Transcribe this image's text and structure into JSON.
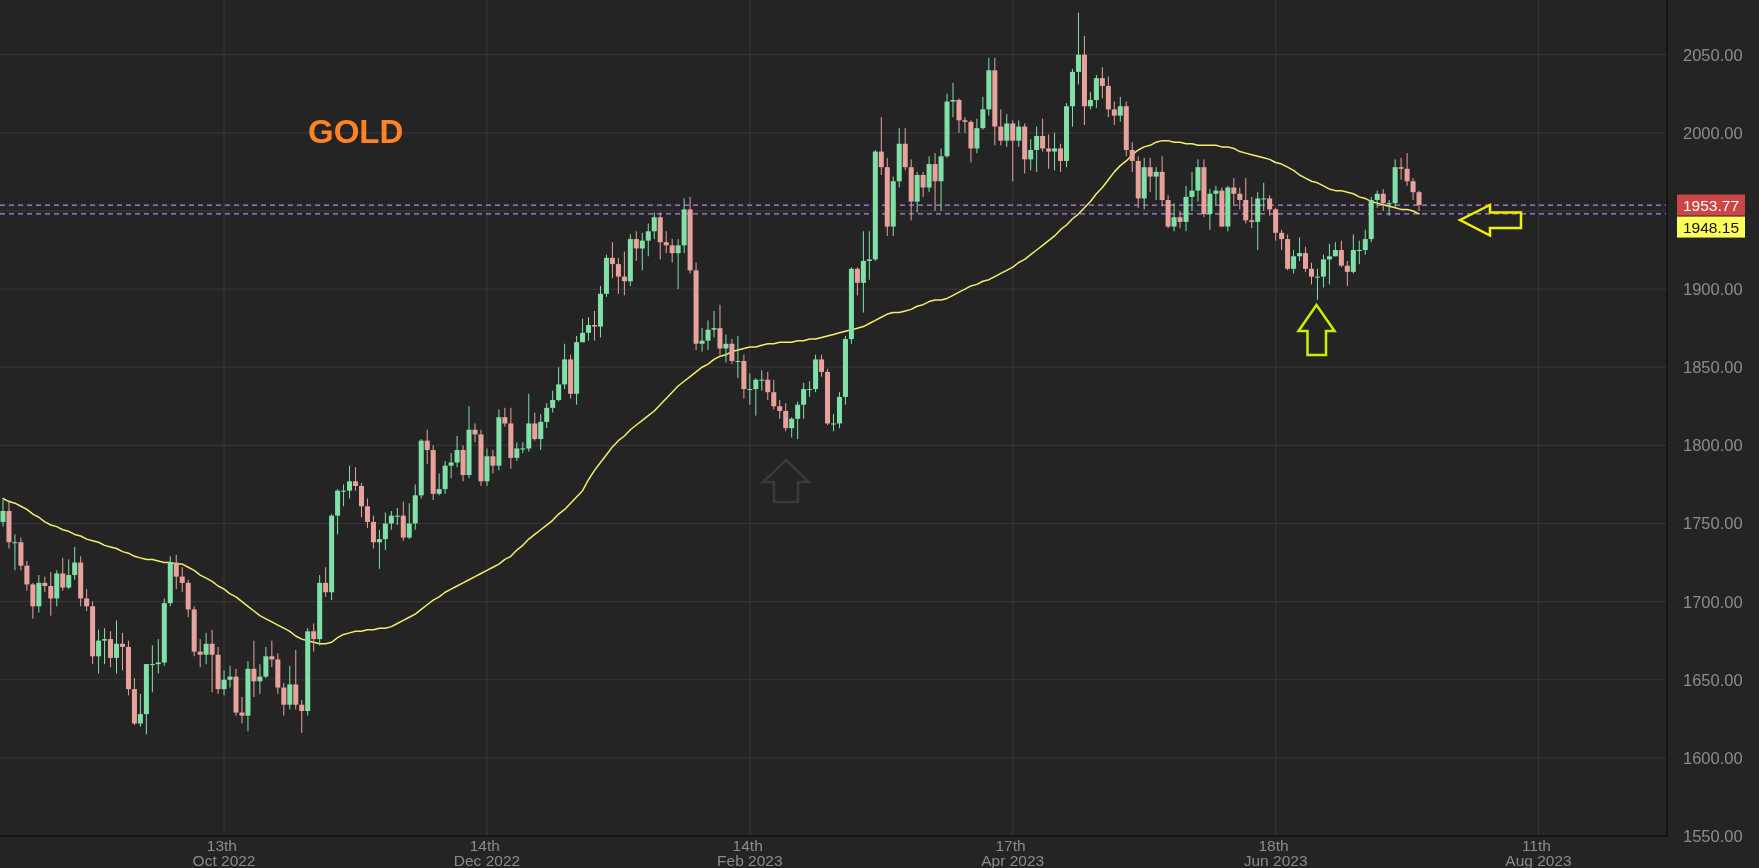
{
  "chart_data": {
    "type": "candlestick",
    "title": "GOLD",
    "categories": [
      null,
      null,
      null,
      null,
      null,
      null,
      null,
      null,
      null,
      null,
      null,
      null,
      null,
      null,
      null,
      null,
      null,
      null,
      null,
      null,
      null,
      null,
      null,
      null,
      null,
      null,
      null,
      null,
      null,
      null,
      null,
      null,
      null,
      null,
      null,
      null,
      null,
      "13th Oct 2022",
      null,
      null,
      null,
      null,
      null,
      null,
      null,
      null,
      null,
      null,
      null,
      null,
      null,
      null,
      null,
      null,
      null,
      null,
      null,
      null,
      null,
      null,
      null,
      null,
      null,
      null,
      null,
      null,
      null,
      null,
      null,
      null,
      null,
      null,
      null,
      null,
      null,
      null,
      null,
      null,
      null,
      null,
      null,
      "14th Dec 2022",
      null,
      null,
      null,
      null,
      null,
      null,
      null,
      null,
      null,
      null,
      null,
      null,
      null,
      null,
      null,
      null,
      null,
      null,
      null,
      null,
      null,
      null,
      null,
      null,
      null,
      null,
      null,
      null,
      null,
      null,
      null,
      null,
      null,
      null,
      null,
      null,
      null,
      null,
      null,
      null,
      null,
      null,
      null,
      "14th Feb 2023",
      null,
      null,
      null,
      null,
      null,
      null,
      null,
      null,
      null,
      null,
      null,
      null,
      null,
      null,
      null,
      null,
      null,
      null,
      null,
      null,
      null,
      null,
      null,
      null,
      null,
      null,
      null,
      null,
      null,
      null,
      null,
      null,
      null,
      null,
      null,
      null,
      null,
      null,
      null,
      null,
      null,
      null,
      null,
      "17th Apr 2023",
      null,
      null,
      null,
      null,
      null,
      null,
      null,
      null,
      null,
      null,
      null,
      null,
      null,
      null,
      null,
      null,
      null,
      null,
      null,
      null,
      null,
      null,
      null,
      null,
      null,
      null,
      null,
      null,
      null,
      null,
      null,
      null,
      null,
      null,
      null,
      null,
      null,
      null,
      null,
      null,
      null,
      null,
      null,
      "18th Jun 2023",
      null,
      null,
      null,
      null,
      null,
      null,
      null,
      null,
      null,
      null,
      null,
      null,
      null,
      null,
      null,
      null,
      null,
      null,
      null,
      null,
      null,
      null,
      null,
      null,
      null,
      null,
      null,
      null,
      null,
      null,
      null,
      null,
      null,
      null,
      null,
      null,
      null,
      null,
      null,
      null,
      null,
      null,
      null,
      "11th Aug 2023",
      null,
      null,
      null,
      null,
      null,
      null,
      null,
      null,
      null,
      null,
      null,
      null,
      null,
      null,
      null,
      null,
      null,
      null,
      null,
      null,
      null
    ],
    "ohlc": [
      [
        1751,
        1765,
        1748,
        1758
      ],
      [
        1758,
        1765,
        1734,
        1738
      ],
      [
        1738,
        1743,
        1720,
        1738
      ],
      [
        1738,
        1741,
        1720,
        1723
      ],
      [
        1723,
        1726,
        1707,
        1711
      ],
      [
        1711,
        1712,
        1689,
        1697
      ],
      [
        1697,
        1717,
        1693,
        1712
      ],
      [
        1712,
        1716,
        1706,
        1710
      ],
      [
        1710,
        1719,
        1691,
        1702
      ],
      [
        1702,
        1720,
        1697,
        1718
      ],
      [
        1718,
        1728,
        1707,
        1709
      ],
      [
        1709,
        1727,
        1708,
        1717
      ],
      [
        1717,
        1735,
        1714,
        1725
      ],
      [
        1725,
        1729,
        1697,
        1702
      ],
      [
        1702,
        1708,
        1694,
        1697
      ],
      [
        1697,
        1700,
        1660,
        1665
      ],
      [
        1665,
        1682,
        1654,
        1675
      ],
      [
        1675,
        1683,
        1660,
        1676
      ],
      [
        1676,
        1681,
        1658,
        1664
      ],
      [
        1664,
        1688,
        1654,
        1673
      ],
      [
        1673,
        1680,
        1656,
        1671
      ],
      [
        1671,
        1675,
        1640,
        1644
      ],
      [
        1644,
        1651,
        1621,
        1622
      ],
      [
        1622,
        1641,
        1620,
        1628
      ],
      [
        1628,
        1660,
        1615,
        1660
      ],
      [
        1660,
        1672,
        1642,
        1660
      ],
      [
        1660,
        1676,
        1654,
        1661
      ],
      [
        1661,
        1702,
        1659,
        1699
      ],
      [
        1699,
        1729,
        1697,
        1725
      ],
      [
        1725,
        1730,
        1708,
        1716
      ],
      [
        1716,
        1722,
        1706,
        1712
      ],
      [
        1712,
        1714,
        1690,
        1695
      ],
      [
        1695,
        1697,
        1665,
        1668
      ],
      [
        1668,
        1676,
        1658,
        1666
      ],
      [
        1666,
        1680,
        1660,
        1673
      ],
      [
        1673,
        1682,
        1642,
        1666
      ],
      [
        1666,
        1671,
        1641,
        1644
      ],
      [
        1644,
        1656,
        1640,
        1650
      ],
      [
        1650,
        1659,
        1645,
        1652
      ],
      [
        1652,
        1657,
        1627,
        1629
      ],
      [
        1629,
        1639,
        1622,
        1627
      ],
      [
        1627,
        1662,
        1617,
        1657
      ],
      [
        1657,
        1675,
        1639,
        1649
      ],
      [
        1649,
        1660,
        1641,
        1652
      ],
      [
        1652,
        1671,
        1651,
        1665
      ],
      [
        1665,
        1675,
        1658,
        1663
      ],
      [
        1663,
        1667,
        1641,
        1645
      ],
      [
        1645,
        1648,
        1627,
        1634
      ],
      [
        1634,
        1659,
        1631,
        1647
      ],
      [
        1647,
        1669,
        1631,
        1634
      ],
      [
        1634,
        1637,
        1616,
        1630
      ],
      [
        1630,
        1683,
        1627,
        1681
      ],
      [
        1681,
        1686,
        1668,
        1676
      ],
      [
        1676,
        1717,
        1672,
        1712
      ],
      [
        1712,
        1722,
        1703,
        1706
      ],
      [
        1706,
        1756,
        1701,
        1755
      ],
      [
        1755,
        1772,
        1743,
        1771
      ],
      [
        1771,
        1775,
        1761,
        1771
      ],
      [
        1771,
        1787,
        1766,
        1777
      ],
      [
        1777,
        1786,
        1771,
        1774
      ],
      [
        1774,
        1776,
        1754,
        1761
      ],
      [
        1761,
        1766,
        1747,
        1751
      ],
      [
        1751,
        1755,
        1734,
        1738
      ],
      [
        1738,
        1746,
        1721,
        1740
      ],
      [
        1740,
        1757,
        1733,
        1750
      ],
      [
        1750,
        1758,
        1746,
        1755
      ],
      [
        1755,
        1760,
        1749,
        1755
      ],
      [
        1755,
        1764,
        1739,
        1741
      ],
      [
        1741,
        1763,
        1740,
        1750
      ],
      [
        1750,
        1775,
        1746,
        1768
      ],
      [
        1768,
        1804,
        1766,
        1803
      ],
      [
        1803,
        1810,
        1788,
        1797
      ],
      [
        1797,
        1800,
        1765,
        1769
      ],
      [
        1769,
        1782,
        1768,
        1772
      ],
      [
        1772,
        1790,
        1769,
        1787
      ],
      [
        1787,
        1795,
        1779,
        1789
      ],
      [
        1789,
        1806,
        1786,
        1797
      ],
      [
        1797,
        1800,
        1777,
        1781
      ],
      [
        1781,
        1825,
        1779,
        1810
      ],
      [
        1810,
        1814,
        1802,
        1807
      ],
      [
        1807,
        1810,
        1774,
        1777
      ],
      [
        1777,
        1798,
        1774,
        1793
      ],
      [
        1793,
        1797,
        1782,
        1787
      ],
      [
        1787,
        1823,
        1784,
        1818
      ],
      [
        1818,
        1824,
        1812,
        1814
      ],
      [
        1814,
        1824,
        1785,
        1792
      ],
      [
        1792,
        1802,
        1790,
        1798
      ],
      [
        1798,
        1802,
        1795,
        1798
      ],
      [
        1798,
        1833,
        1796,
        1814
      ],
      [
        1814,
        1821,
        1803,
        1804
      ],
      [
        1804,
        1820,
        1797,
        1815
      ],
      [
        1815,
        1827,
        1811,
        1824
      ],
      [
        1824,
        1835,
        1821,
        1829
      ],
      [
        1829,
        1850,
        1828,
        1839
      ],
      [
        1839,
        1865,
        1836,
        1855
      ],
      [
        1855,
        1858,
        1830,
        1833
      ],
      [
        1833,
        1870,
        1826,
        1866
      ],
      [
        1866,
        1881,
        1866,
        1872
      ],
      [
        1872,
        1882,
        1867,
        1877
      ],
      [
        1877,
        1886,
        1867,
        1876
      ],
      [
        1876,
        1902,
        1869,
        1897
      ],
      [
        1897,
        1922,
        1895,
        1920
      ],
      [
        1920,
        1930,
        1907,
        1916
      ],
      [
        1916,
        1920,
        1897,
        1908
      ],
      [
        1908,
        1924,
        1896,
        1905
      ],
      [
        1905,
        1935,
        1902,
        1932
      ],
      [
        1932,
        1937,
        1918,
        1926
      ],
      [
        1926,
        1936,
        1912,
        1931
      ],
      [
        1931,
        1942,
        1921,
        1937
      ],
      [
        1937,
        1949,
        1932,
        1946
      ],
      [
        1946,
        1949,
        1919,
        1930
      ],
      [
        1930,
        1937,
        1923,
        1928
      ],
      [
        1928,
        1932,
        1917,
        1923
      ],
      [
        1923,
        1932,
        1900,
        1928
      ],
      [
        1928,
        1958,
        1923,
        1951
      ],
      [
        1951,
        1959,
        1910,
        1912
      ],
      [
        1912,
        1917,
        1861,
        1865
      ],
      [
        1865,
        1875,
        1860,
        1867
      ],
      [
        1867,
        1880,
        1861,
        1874
      ],
      [
        1874,
        1886,
        1869,
        1875
      ],
      [
        1875,
        1890,
        1858,
        1862
      ],
      [
        1862,
        1871,
        1853,
        1865
      ],
      [
        1865,
        1868,
        1852,
        1854
      ],
      [
        1854,
        1870,
        1843,
        1854
      ],
      [
        1854,
        1858,
        1830,
        1836
      ],
      [
        1836,
        1846,
        1826,
        1836
      ],
      [
        1836,
        1843,
        1819,
        1842
      ],
      [
        1842,
        1848,
        1835,
        1842
      ],
      [
        1842,
        1847,
        1829,
        1834
      ],
      [
        1834,
        1842,
        1823,
        1825
      ],
      [
        1825,
        1829,
        1817,
        1822
      ],
      [
        1822,
        1827,
        1809,
        1811
      ],
      [
        1811,
        1818,
        1805,
        1817
      ],
      [
        1817,
        1828,
        1804,
        1826
      ],
      [
        1826,
        1840,
        1817,
        1836
      ],
      [
        1836,
        1841,
        1831,
        1836
      ],
      [
        1836,
        1858,
        1834,
        1855
      ],
      [
        1855,
        1858,
        1844,
        1847
      ],
      [
        1847,
        1849,
        1813,
        1814
      ],
      [
        1814,
        1820,
        1809,
        1814
      ],
      [
        1814,
        1834,
        1811,
        1831
      ],
      [
        1831,
        1870,
        1826,
        1868
      ],
      [
        1868,
        1914,
        1865,
        1913
      ],
      [
        1913,
        1914,
        1896,
        1904
      ],
      [
        1904,
        1937,
        1885,
        1918
      ],
      [
        1918,
        1937,
        1906,
        1919
      ],
      [
        1919,
        1989,
        1918,
        1988
      ],
      [
        1988,
        2010,
        1973,
        1978
      ],
      [
        1978,
        1984,
        1934,
        1940
      ],
      [
        1940,
        1972,
        1934,
        1969
      ],
      [
        1969,
        2003,
        1965,
        1993
      ],
      [
        1993,
        2003,
        1976,
        1978
      ],
      [
        1978,
        1983,
        1944,
        1956
      ],
      [
        1956,
        1975,
        1949,
        1973
      ],
      [
        1973,
        1975,
        1959,
        1965
      ],
      [
        1965,
        1985,
        1962,
        1980
      ],
      [
        1980,
        1987,
        1950,
        1969
      ],
      [
        1969,
        1990,
        1950,
        1985
      ],
      [
        1985,
        2025,
        1984,
        2020
      ],
      [
        2020,
        2032,
        2010,
        2021
      ],
      [
        2021,
        2022,
        2000,
        2008
      ],
      [
        2008,
        2010,
        2000,
        2007
      ],
      [
        2007,
        2008,
        1981,
        1990
      ],
      [
        1990,
        2009,
        1987,
        2003
      ],
      [
        2003,
        2023,
        2002,
        2015
      ],
      [
        2015,
        2048,
        2011,
        2040
      ],
      [
        2040,
        2048,
        1992,
        2004
      ],
      [
        2004,
        2015,
        1992,
        1995
      ],
      [
        1995,
        2012,
        1991,
        2006
      ],
      [
        2006,
        2008,
        1969,
        1995
      ],
      [
        1995,
        2008,
        1991,
        2004
      ],
      [
        2004,
        2006,
        1974,
        1983
      ],
      [
        1983,
        1996,
        1976,
        1989
      ],
      [
        1989,
        2004,
        1975,
        1998
      ],
      [
        1998,
        2009,
        1988,
        1990
      ],
      [
        1990,
        1999,
        1977,
        1988
      ],
      [
        1988,
        2000,
        1976,
        1990
      ],
      [
        1990,
        1993,
        1975,
        1982
      ],
      [
        1982,
        2019,
        1978,
        2017
      ],
      [
        2017,
        2041,
        2004,
        2039
      ],
      [
        2039,
        2077,
        2031,
        2050
      ],
      [
        2050,
        2062,
        2005,
        2017
      ],
      [
        2017,
        2026,
        2015,
        2021
      ],
      [
        2021,
        2037,
        2016,
        2035
      ],
      [
        2035,
        2042,
        2022,
        2030
      ],
      [
        2030,
        2036,
        2010,
        2015
      ],
      [
        2015,
        2020,
        2005,
        2011
      ],
      [
        2011,
        2023,
        2007,
        2017
      ],
      [
        2017,
        2020,
        1985,
        1989
      ],
      [
        1989,
        1994,
        1975,
        1982
      ],
      [
        1982,
        1985,
        1952,
        1958
      ],
      [
        1958,
        1984,
        1951,
        1978
      ],
      [
        1978,
        1984,
        1962,
        1972
      ],
      [
        1972,
        1978,
        1957,
        1975
      ],
      [
        1975,
        1985,
        1953,
        1957
      ],
      [
        1957,
        1960,
        1939,
        1940
      ],
      [
        1940,
        1955,
        1937,
        1946
      ],
      [
        1946,
        1950,
        1939,
        1943
      ],
      [
        1943,
        1966,
        1937,
        1959
      ],
      [
        1959,
        1975,
        1950,
        1963
      ],
      [
        1963,
        1983,
        1956,
        1978
      ],
      [
        1978,
        1983,
        1946,
        1948
      ],
      [
        1948,
        1964,
        1938,
        1961
      ],
      [
        1961,
        1966,
        1954,
        1963
      ],
      [
        1963,
        1965,
        1940,
        1940
      ],
      [
        1940,
        1966,
        1937,
        1965
      ],
      [
        1965,
        1971,
        1954,
        1961
      ],
      [
        1961,
        1965,
        1951,
        1957
      ],
      [
        1957,
        1971,
        1942,
        1944
      ],
      [
        1944,
        1959,
        1939,
        1943
      ],
      [
        1943,
        1962,
        1925,
        1958
      ],
      [
        1958,
        1968,
        1950,
        1958
      ],
      [
        1958,
        1960,
        1947,
        1951
      ],
      [
        1951,
        1952,
        1931,
        1936
      ],
      [
        1936,
        1938,
        1925,
        1932
      ],
      [
        1932,
        1935,
        1912,
        1913
      ],
      [
        1913,
        1925,
        1910,
        1921
      ],
      [
        1921,
        1933,
        1918,
        1923
      ],
      [
        1923,
        1927,
        1911,
        1913
      ],
      [
        1913,
        1917,
        1903,
        1908
      ],
      [
        1908,
        1913,
        1893,
        1908
      ],
      [
        1908,
        1922,
        1901,
        1919
      ],
      [
        1919,
        1929,
        1903,
        1921
      ],
      [
        1921,
        1930,
        1921,
        1925
      ],
      [
        1925,
        1931,
        1914,
        1915
      ],
      [
        1915,
        1918,
        1902,
        1911
      ],
      [
        1911,
        1935,
        1910,
        1925
      ],
      [
        1925,
        1931,
        1916,
        1925
      ],
      [
        1925,
        1938,
        1922,
        1932
      ],
      [
        1932,
        1959,
        1930,
        1957
      ],
      [
        1957,
        1963,
        1952,
        1961
      ],
      [
        1961,
        1964,
        1950,
        1955
      ],
      [
        1955,
        1957,
        1947,
        1955
      ],
      [
        1955,
        1983,
        1952,
        1978
      ],
      [
        1978,
        1984,
        1970,
        1977
      ],
      [
        1977,
        1987,
        1966,
        1969
      ],
      [
        1969,
        1971,
        1957,
        1962
      ],
      [
        1962,
        1963,
        1950,
        1953.77
      ],
      null,
      null,
      null,
      null,
      null,
      null,
      null,
      null,
      null,
      null,
      null,
      null,
      null,
      null,
      null,
      null,
      null,
      null,
      null,
      null,
      null,
      null,
      null,
      null,
      null,
      null,
      null,
      null,
      null,
      null,
      null,
      null,
      null,
      null,
      null,
      null,
      null,
      null,
      null,
      null,
      null
    ],
    "series": [
      {
        "type": "line",
        "color": "#f2ee6a",
        "values": [
          1766,
          1764,
          1763,
          1761,
          1759,
          1756,
          1754,
          1751,
          1749,
          1748,
          1746,
          1745,
          1743,
          1742,
          1740,
          1739,
          1738,
          1736,
          1735,
          1734,
          1732,
          1731,
          1729,
          1728,
          1727,
          1727,
          1726,
          1725,
          1725,
          1724,
          1724,
          1722,
          1720,
          1717,
          1715,
          1713,
          1710,
          1708,
          1705,
          1703,
          1700,
          1697,
          1694,
          1691,
          1689,
          1687,
          1685,
          1683,
          1681,
          1678,
          1676,
          1675,
          1674,
          1673,
          1673,
          1674,
          1677,
          1679,
          1680,
          1681,
          1681,
          1682,
          1682,
          1683,
          1683,
          1684,
          1686,
          1688,
          1690,
          1692,
          1695,
          1698,
          1701,
          1703,
          1706,
          1708,
          1710,
          1712,
          1714,
          1716,
          1718,
          1720,
          1722,
          1724,
          1727,
          1729,
          1733,
          1736,
          1740,
          1743,
          1746,
          1749,
          1752,
          1756,
          1759,
          1763,
          1767,
          1771,
          1778,
          1784,
          1789,
          1794,
          1799,
          1803,
          1806,
          1810,
          1813,
          1816,
          1819,
          1822,
          1826,
          1830,
          1834,
          1838,
          1841,
          1844,
          1847,
          1850,
          1852,
          1855,
          1857,
          1858,
          1860,
          1861,
          1862,
          1863,
          1863,
          1864,
          1865,
          1865,
          1866,
          1866,
          1866,
          1867,
          1867,
          1868,
          1868,
          1869,
          1870,
          1871,
          1872,
          1873,
          1874,
          1875,
          1876,
          1878,
          1880,
          1882,
          1884,
          1885,
          1885,
          1886,
          1887,
          1889,
          1890,
          1892,
          1893,
          1893,
          1894,
          1896,
          1898,
          1900,
          1902,
          1903,
          1905,
          1906,
          1908,
          1910,
          1912,
          1914,
          1917,
          1919,
          1922,
          1925,
          1928,
          1931,
          1934,
          1938,
          1941,
          1945,
          1948,
          1952,
          1956,
          1961,
          1965,
          1970,
          1975,
          1979,
          1982,
          1986,
          1989,
          1991,
          1992,
          1994,
          1995,
          1995,
          1994,
          1994,
          1993,
          1993,
          1992,
          1992,
          1992,
          1992,
          1991,
          1991,
          1990,
          1988,
          1987,
          1986,
          1985,
          1984,
          1983,
          1981,
          1980,
          1978,
          1976,
          1973,
          1971,
          1969,
          1968,
          1966,
          1964,
          1963,
          1963,
          1962,
          1961,
          1959,
          1958,
          1956,
          1955,
          1954,
          1953,
          1952,
          1951,
          1951,
          1950,
          1948.15,
          null,
          null,
          null,
          null,
          null,
          null,
          null,
          null,
          null,
          null,
          null,
          null,
          null,
          null,
          null,
          null,
          null,
          null,
          null,
          null,
          null,
          null,
          null,
          null,
          null,
          null,
          null,
          null,
          null,
          null,
          null,
          null,
          null,
          null,
          null,
          null,
          null,
          null,
          null,
          null,
          null
        ]
      }
    ],
    "ylim": [
      1550,
      2085
    ],
    "yticks": [
      {
        "value": 1550,
        "label": "1550.00"
      },
      {
        "value": 1600,
        "label": "1600.00"
      },
      {
        "value": 1650,
        "label": "1650.00"
      },
      {
        "value": 1700,
        "label": "1700.00"
      },
      {
        "value": 1750,
        "label": "1750.00"
      },
      {
        "value": 1800,
        "label": "1800.00"
      },
      {
        "value": 1850,
        "label": "1850.00"
      },
      {
        "value": 1900,
        "label": "1900.00"
      },
      {
        "value": 1950,
        "label": null
      },
      {
        "value": 2000,
        "label": "2000.00"
      },
      {
        "value": 2050,
        "label": "2050.00"
      }
    ],
    "grid": true,
    "ref_lines": [
      {
        "axis": "y",
        "value": 1953.77,
        "label": "1953.77",
        "line_style": "dashed"
      },
      {
        "axis": "y",
        "value": 1948.15,
        "label": "1948.15",
        "line_style": "dashed"
      }
    ]
  }
}
